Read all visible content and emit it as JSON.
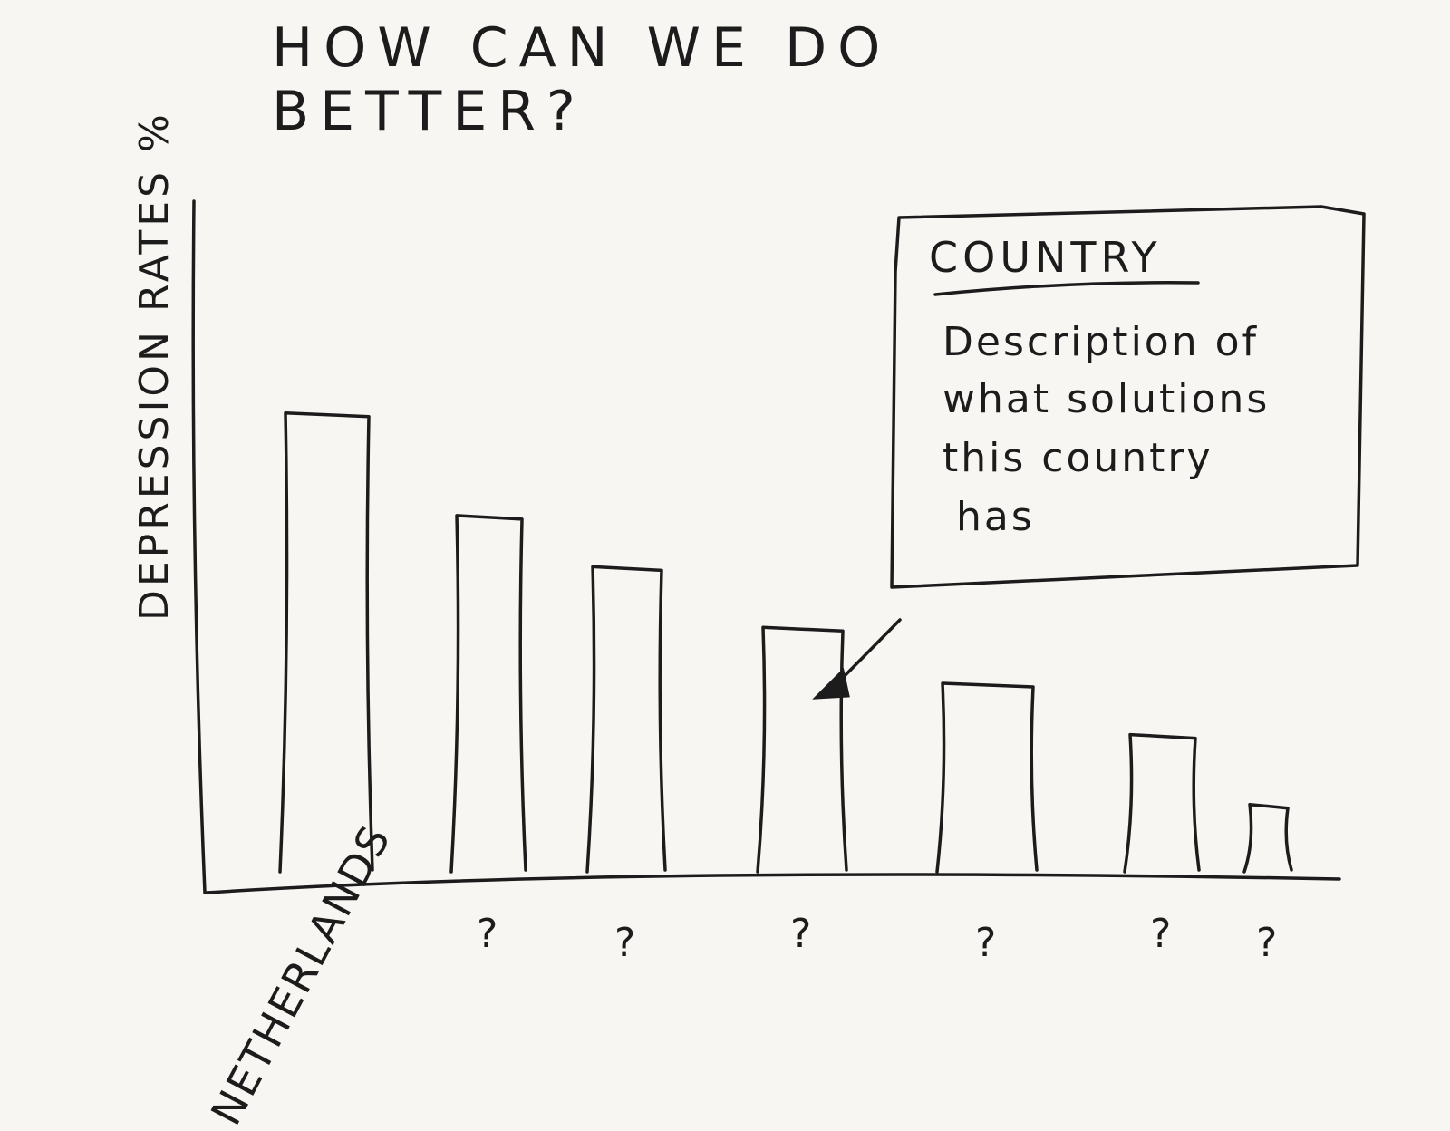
{
  "chart_data": {
    "type": "bar",
    "title": "HOW CAN WE DO BETTER?",
    "ylabel": "DEPRESSION RATES %",
    "xlabel": "",
    "categories": [
      "NETHERLANDS",
      "?",
      "?",
      "?",
      "?",
      "?",
      "?"
    ],
    "values": [
      100,
      78,
      67,
      54,
      42,
      31,
      16
    ],
    "ylim": [
      0,
      140
    ],
    "grid": false,
    "annotation": {
      "title": "COUNTRY",
      "lines": [
        "Description of",
        "what solutions",
        "this country",
        "has"
      ],
      "points_to_index": 3
    }
  },
  "colors": {
    "ink": "#1c1c1c",
    "paper": "#f7f6f3"
  }
}
